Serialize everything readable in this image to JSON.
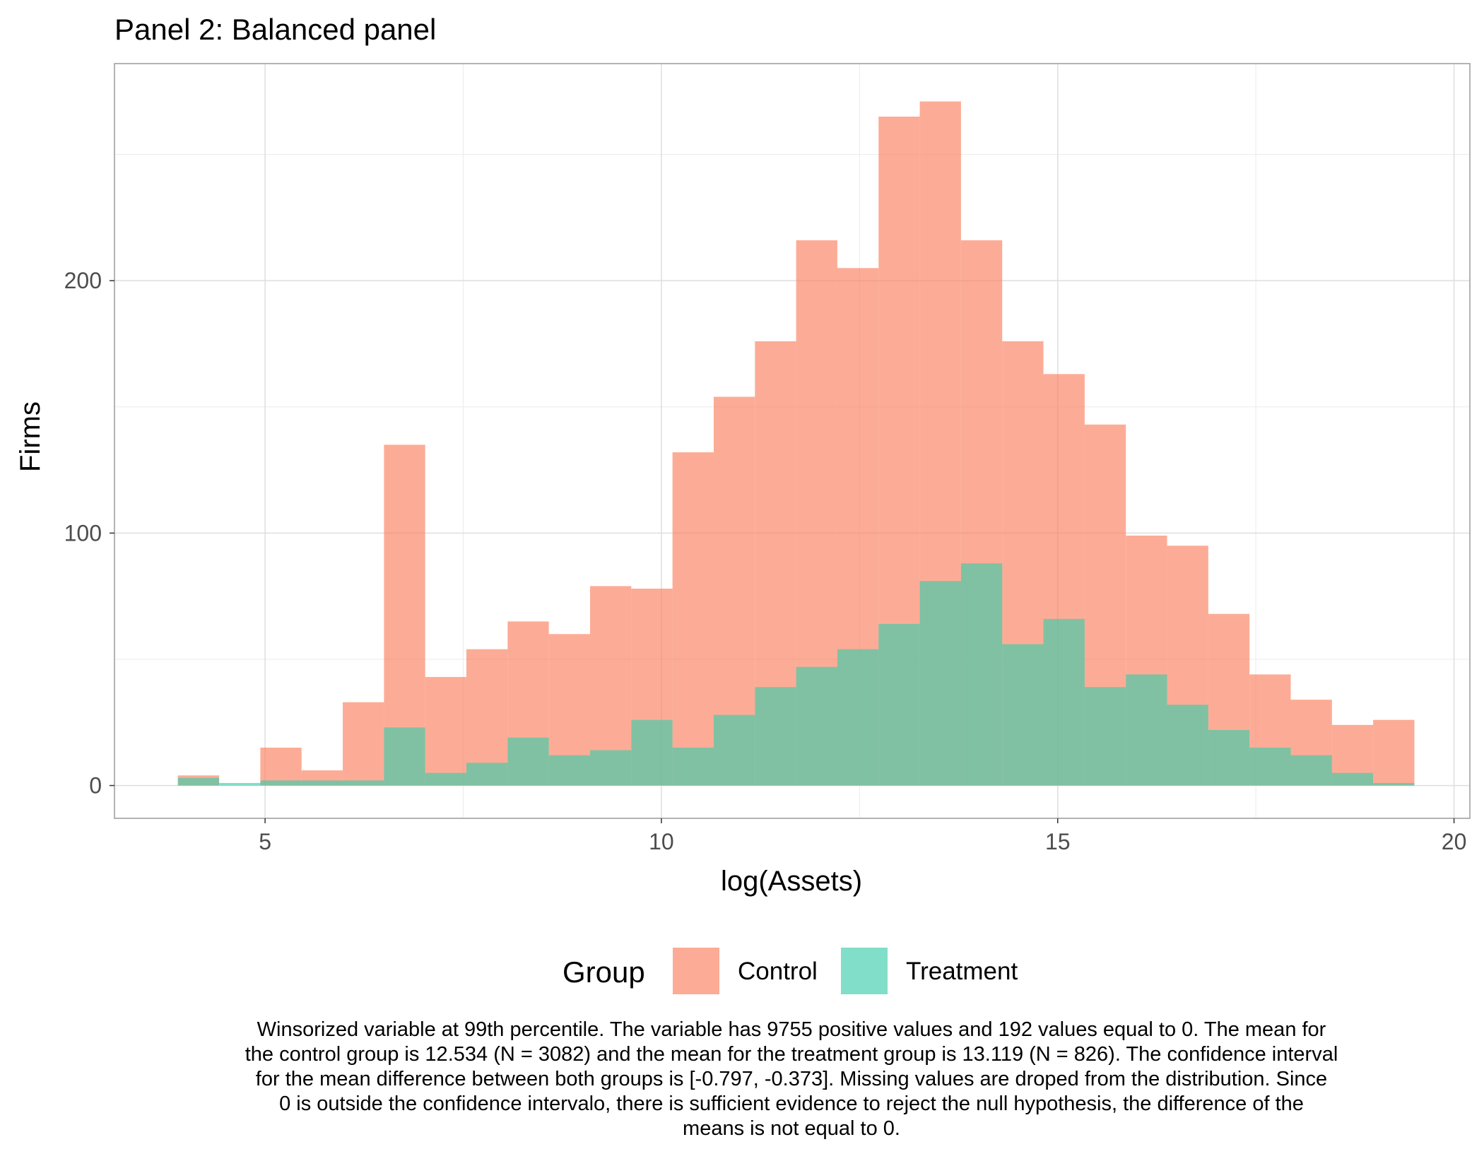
{
  "chart_data": {
    "type": "bar",
    "title": "Panel 2: Balanced panel",
    "xlabel": "log(Assets)",
    "ylabel": "Firms",
    "xlim": [
      3.1,
      20.2
    ],
    "ylim": [
      -13,
      286
    ],
    "x_ticks": [
      5,
      10,
      15,
      20
    ],
    "y_ticks": [
      0,
      100,
      200
    ],
    "grid": true,
    "legend": {
      "title": "Group",
      "position": "bottom"
    },
    "bin_width": 0.52,
    "bin_left_edges": [
      3.9,
      4.42,
      4.94,
      5.46,
      5.98,
      6.5,
      7.02,
      7.54,
      8.06,
      8.58,
      9.1,
      9.62,
      10.14,
      10.66,
      11.18,
      11.7,
      12.22,
      12.74,
      13.26,
      13.78,
      14.3,
      14.82,
      15.34,
      15.86,
      16.38,
      16.9,
      17.42,
      17.94,
      18.46,
      18.98
    ],
    "series": [
      {
        "name": "Control",
        "color": "#FA7F5E",
        "opacity": 0.65,
        "values": [
          4,
          0,
          15,
          6,
          33,
          135,
          43,
          54,
          65,
          60,
          79,
          78,
          132,
          154,
          176,
          216,
          205,
          265,
          271,
          216,
          176,
          163,
          143,
          99,
          95,
          68,
          44,
          34,
          24,
          26
        ]
      },
      {
        "name": "Treatment",
        "color": "#3ECCAA",
        "opacity": 0.65,
        "values": [
          3,
          1,
          2,
          2,
          2,
          23,
          5,
          9,
          19,
          12,
          14,
          26,
          15,
          28,
          39,
          47,
          54,
          64,
          81,
          88,
          56,
          66,
          39,
          44,
          32,
          22,
          15,
          12,
          5,
          1
        ]
      }
    ]
  },
  "caption_lines": [
    "Winsorized variable at 99th percentile. The variable has 9755 positive values and 192 values equal to 0. The mean for",
    "the control group is 12.534 (N = 3082) and the mean for the treatment group is 13.119 (N = 826). The confidence interval",
    "for the mean difference between both groups is [-0.797, -0.373]. Missing values are droped from the distribution. Since",
    "0 is outside the confidence intervalo, there is sufficient evidence to reject the null hypothesis, the difference of the",
    "means is not equal to 0."
  ]
}
